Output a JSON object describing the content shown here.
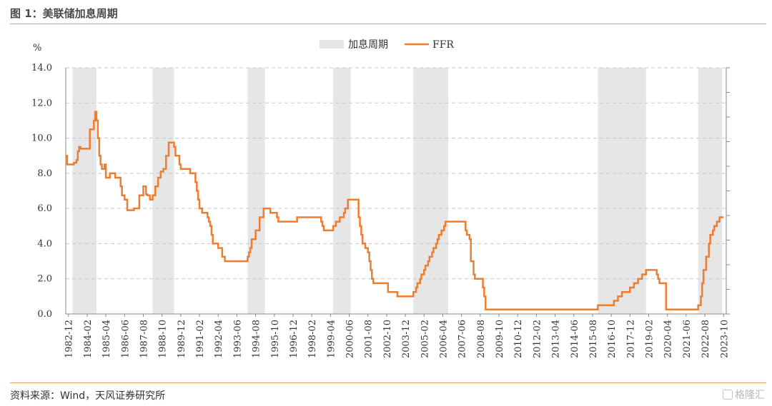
{
  "header": {
    "title": "图 1：美联储加息周期"
  },
  "footer": {
    "source": "资料来源：Wind，天风证券研究所",
    "watermark": "格隆汇"
  },
  "colors": {
    "accent": "#e8a15c",
    "series": "#ed7d31",
    "shade": "#e6e6e6",
    "grid": "#c8c8c8"
  },
  "chart_data": {
    "type": "line",
    "ylabel": "%",
    "ylim": [
      0,
      14
    ],
    "yticks": [
      "0.0",
      "2.0",
      "4.0",
      "6.0",
      "8.0",
      "10.0",
      "12.0",
      "14.0"
    ],
    "xlim": [
      "1982-10",
      "2023-12"
    ],
    "xticks": [
      "1982-12",
      "1984-02",
      "1985-04",
      "1986-06",
      "1987-08",
      "1988-10",
      "1989-12",
      "1991-02",
      "1992-04",
      "1993-06",
      "1994-08",
      "1995-10",
      "1996-12",
      "1998-02",
      "1999-04",
      "2000-06",
      "2001-08",
      "2002-10",
      "2003-12",
      "2005-02",
      "2006-04",
      "2007-06",
      "2008-08",
      "2009-10",
      "2010-12",
      "2012-02",
      "2013-04",
      "2014-06",
      "2015-08",
      "2016-10",
      "2017-12",
      "2019-02",
      "2020-04",
      "2021-06",
      "2022-08",
      "2023-10"
    ],
    "grid": true,
    "legend": {
      "position": "top-center",
      "shade_label": "加息周期",
      "line_label": "FFR"
    },
    "hike_cycles": [
      [
        "1983-03",
        "1984-09"
      ],
      [
        "1988-03",
        "1989-07"
      ],
      [
        "1994-02",
        "1995-03"
      ],
      [
        "1999-06",
        "2000-07"
      ],
      [
        "2004-06",
        "2006-08"
      ],
      [
        "2015-12",
        "2018-12"
      ],
      [
        "2022-03",
        "2023-09"
      ]
    ],
    "series": [
      {
        "name": "FFR",
        "points": [
          [
            "1982-10",
            9.0
          ],
          [
            "1982-11",
            8.5
          ],
          [
            "1983-02",
            8.5
          ],
          [
            "1983-04",
            8.6
          ],
          [
            "1983-06",
            8.75
          ],
          [
            "1983-07",
            9.25
          ],
          [
            "1983-08",
            9.5
          ],
          [
            "1983-09",
            9.4
          ],
          [
            "1984-03",
            9.4
          ],
          [
            "1984-04",
            10.5
          ],
          [
            "1984-06",
            10.5
          ],
          [
            "1984-07",
            11.0
          ],
          [
            "1984-08",
            11.5
          ],
          [
            "1984-09",
            11.0
          ],
          [
            "1984-10",
            10.0
          ],
          [
            "1984-11",
            9.0
          ],
          [
            "1984-12",
            8.5
          ],
          [
            "1985-01",
            8.25
          ],
          [
            "1985-02",
            8.25
          ],
          [
            "1985-03",
            8.5
          ],
          [
            "1985-04",
            7.75
          ],
          [
            "1985-06",
            7.75
          ],
          [
            "1985-07",
            8.0
          ],
          [
            "1985-10",
            8.0
          ],
          [
            "1985-11",
            7.75
          ],
          [
            "1986-03",
            7.25
          ],
          [
            "1986-04",
            6.75
          ],
          [
            "1986-05",
            6.75
          ],
          [
            "1986-06",
            6.5
          ],
          [
            "1986-08",
            5.9
          ],
          [
            "1986-12",
            5.9
          ],
          [
            "1987-01",
            6.0
          ],
          [
            "1987-04",
            6.0
          ],
          [
            "1987-05",
            6.75
          ],
          [
            "1987-07",
            6.75
          ],
          [
            "1987-08",
            7.25
          ],
          [
            "1987-09",
            7.25
          ],
          [
            "1987-10",
            6.8
          ],
          [
            "1987-11",
            6.75
          ],
          [
            "1988-01",
            6.5
          ],
          [
            "1988-03",
            6.75
          ],
          [
            "1988-05",
            7.25
          ],
          [
            "1988-07",
            7.75
          ],
          [
            "1988-09",
            8.1
          ],
          [
            "1988-11",
            8.25
          ],
          [
            "1989-01",
            9.0
          ],
          [
            "1989-03",
            9.75
          ],
          [
            "1989-06",
            9.75
          ],
          [
            "1989-07",
            9.5
          ],
          [
            "1989-08",
            9.0
          ],
          [
            "1989-11",
            8.5
          ],
          [
            "1989-12",
            8.25
          ],
          [
            "1990-06",
            8.25
          ],
          [
            "1990-07",
            8.0
          ],
          [
            "1990-10",
            8.0
          ],
          [
            "1990-11",
            7.5
          ],
          [
            "1990-12",
            7.0
          ],
          [
            "1991-01",
            6.5
          ],
          [
            "1991-02",
            6.0
          ],
          [
            "1991-04",
            5.75
          ],
          [
            "1991-08",
            5.5
          ],
          [
            "1991-09",
            5.25
          ],
          [
            "1991-10",
            5.0
          ],
          [
            "1991-11",
            4.5
          ],
          [
            "1991-12",
            4.0
          ],
          [
            "1992-04",
            3.75
          ],
          [
            "1992-07",
            3.25
          ],
          [
            "1992-09",
            3.0
          ],
          [
            "1994-01",
            3.0
          ],
          [
            "1994-02",
            3.25
          ],
          [
            "1994-03",
            3.5
          ],
          [
            "1994-04",
            3.75
          ],
          [
            "1994-05",
            4.25
          ],
          [
            "1994-08",
            4.75
          ],
          [
            "1994-11",
            5.5
          ],
          [
            "1995-02",
            6.0
          ],
          [
            "1995-07",
            5.75
          ],
          [
            "1995-12",
            5.5
          ],
          [
            "1996-01",
            5.25
          ],
          [
            "1997-03",
            5.5
          ],
          [
            "1998-09",
            5.25
          ],
          [
            "1998-10",
            5.0
          ],
          [
            "1998-11",
            4.75
          ],
          [
            "1999-06",
            5.0
          ],
          [
            "1999-08",
            5.25
          ],
          [
            "1999-11",
            5.5
          ],
          [
            "2000-02",
            5.75
          ],
          [
            "2000-03",
            6.0
          ],
          [
            "2000-05",
            6.5
          ],
          [
            "2001-01",
            5.5
          ],
          [
            "2001-02",
            5.0
          ],
          [
            "2001-03",
            4.5
          ],
          [
            "2001-04",
            4.0
          ],
          [
            "2001-06",
            3.75
          ],
          [
            "2001-08",
            3.5
          ],
          [
            "2001-09",
            3.0
          ],
          [
            "2001-10",
            2.5
          ],
          [
            "2001-11",
            2.0
          ],
          [
            "2001-12",
            1.75
          ],
          [
            "2002-11",
            1.25
          ],
          [
            "2003-06",
            1.0
          ],
          [
            "2004-06",
            1.25
          ],
          [
            "2004-08",
            1.5
          ],
          [
            "2004-09",
            1.75
          ],
          [
            "2004-11",
            2.0
          ],
          [
            "2004-12",
            2.25
          ],
          [
            "2005-02",
            2.5
          ],
          [
            "2005-03",
            2.75
          ],
          [
            "2005-05",
            3.0
          ],
          [
            "2005-06",
            3.25
          ],
          [
            "2005-08",
            3.5
          ],
          [
            "2005-09",
            3.75
          ],
          [
            "2005-11",
            4.0
          ],
          [
            "2005-12",
            4.25
          ],
          [
            "2006-01",
            4.5
          ],
          [
            "2006-03",
            4.75
          ],
          [
            "2006-05",
            5.0
          ],
          [
            "2006-06",
            5.25
          ],
          [
            "2007-09",
            4.75
          ],
          [
            "2007-10",
            4.5
          ],
          [
            "2007-12",
            4.25
          ],
          [
            "2008-01",
            3.0
          ],
          [
            "2008-03",
            2.25
          ],
          [
            "2008-04",
            2.0
          ],
          [
            "2008-10",
            1.5
          ],
          [
            "2008-11",
            1.0
          ],
          [
            "2008-12",
            0.25
          ],
          [
            "2015-12",
            0.5
          ],
          [
            "2016-12",
            0.75
          ],
          [
            "2017-03",
            1.0
          ],
          [
            "2017-06",
            1.25
          ],
          [
            "2017-12",
            1.5
          ],
          [
            "2018-03",
            1.75
          ],
          [
            "2018-06",
            2.0
          ],
          [
            "2018-09",
            2.25
          ],
          [
            "2018-12",
            2.5
          ],
          [
            "2019-08",
            2.25
          ],
          [
            "2019-09",
            2.0
          ],
          [
            "2019-10",
            1.75
          ],
          [
            "2020-03",
            0.25
          ],
          [
            "2022-03",
            0.5
          ],
          [
            "2022-05",
            1.0
          ],
          [
            "2022-06",
            1.75
          ],
          [
            "2022-07",
            2.5
          ],
          [
            "2022-09",
            3.25
          ],
          [
            "2022-11",
            4.0
          ],
          [
            "2022-12",
            4.5
          ],
          [
            "2023-02",
            4.75
          ],
          [
            "2023-03",
            5.0
          ],
          [
            "2023-05",
            5.25
          ],
          [
            "2023-07",
            5.5
          ],
          [
            "2023-10",
            5.5
          ]
        ]
      }
    ]
  }
}
